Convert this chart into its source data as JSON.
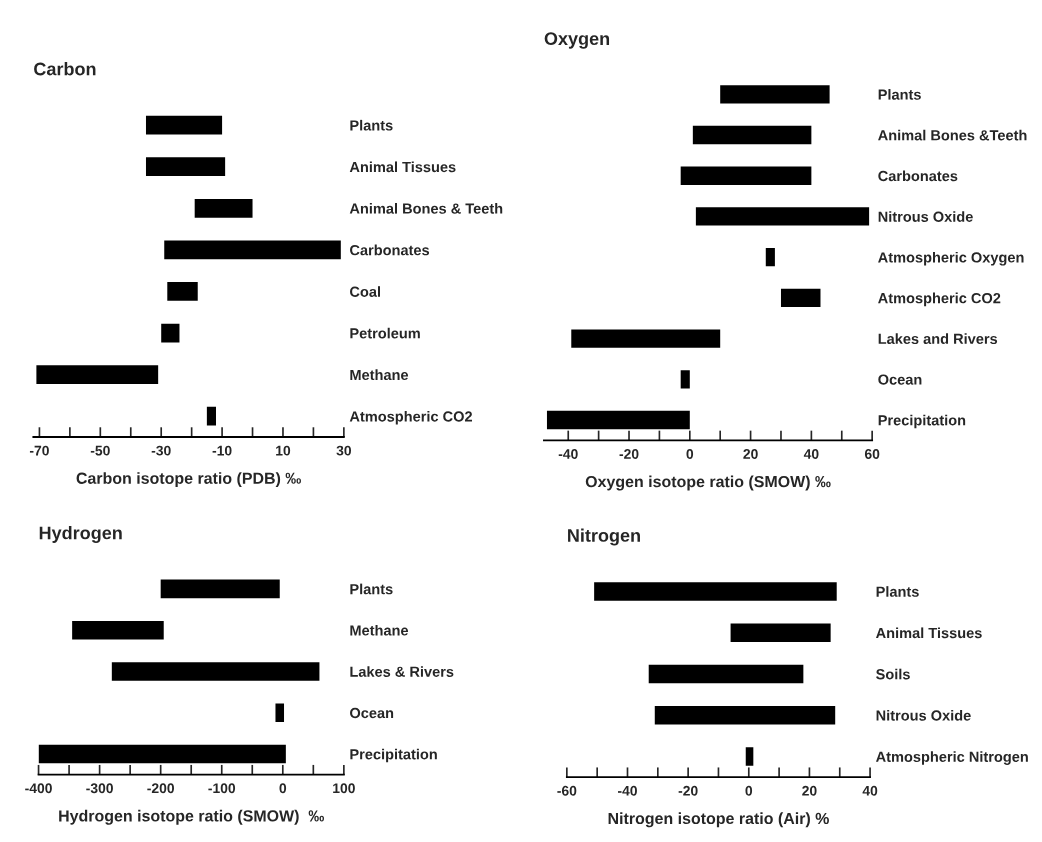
{
  "chart_data": [
    {
      "type": "bar",
      "orientation": "horizontal",
      "title": "Carbon",
      "xlabel": "Carbon isotope ratio (PDB) ‰",
      "categories": [
        "Plants",
        "Animal Tissues",
        "Animal Bones & Teeth",
        "Carbonates",
        "Coal",
        "Petroleum",
        "Methane",
        "Atmospheric CO2"
      ],
      "base": [
        -35,
        -35,
        -19,
        -29,
        -28,
        -30,
        -71,
        -15
      ],
      "values": [
        25,
        26,
        19,
        58,
        10,
        6,
        40,
        3
      ],
      "color": "#000000",
      "xlim": [
        -72,
        30
      ],
      "xticks": [
        -70,
        {
          "value": -60,
          "label": null
        },
        -50,
        {
          "value": -40,
          "label": null
        },
        -30,
        {
          "value": -20,
          "label": null
        },
        -10,
        {
          "value": 0,
          "label": null
        },
        10,
        {
          "value": 20,
          "label": null
        },
        30
      ]
    },
    {
      "type": "bar",
      "orientation": "horizontal",
      "title": "Oxygen",
      "xlabel": "Oxygen isotope ratio (SMOW) ‰",
      "categories": [
        "Plants",
        "Animal Bones &Teeth",
        "Carbonates",
        "Nitrous Oxide",
        "Atmospheric Oxygen",
        "Atmospheric CO2",
        "Lakes and Rivers",
        "Ocean",
        "Precipitation"
      ],
      "base": [
        10,
        1,
        -3,
        2,
        25,
        30,
        -39,
        -3,
        -47
      ],
      "values": [
        36,
        39,
        43,
        57,
        3,
        13,
        49,
        3,
        47
      ],
      "color": "#000000",
      "xlim": [
        -48,
        60
      ],
      "xticks": [
        -40,
        {
          "value": -30,
          "label": null
        },
        -20,
        {
          "value": -10,
          "label": null
        },
        0,
        {
          "value": 10,
          "label": null
        },
        20,
        {
          "value": 30,
          "label": null
        },
        40,
        {
          "value": 50,
          "label": null
        },
        60
      ]
    },
    {
      "type": "bar",
      "orientation": "horizontal",
      "title": "Hydrogen",
      "xlabel": "Hydrogen isotope ratio (SMOW)  ‰",
      "categories": [
        "Plants",
        "Methane",
        "Lakes & Rivers",
        "Ocean",
        "Precipitation"
      ],
      "base": [
        -200,
        -345,
        -280,
        -12,
        -400
      ],
      "values": [
        195,
        150,
        340,
        14,
        405
      ],
      "color": "#000000",
      "xlim": [
        -400,
        100
      ],
      "xticks": [
        -400,
        {
          "value": -350,
          "label": null
        },
        -300,
        {
          "value": -250,
          "label": null
        },
        -200,
        {
          "value": -150,
          "label": null
        },
        -100,
        {
          "value": -50,
          "label": null
        },
        0,
        {
          "value": 50,
          "label": null
        },
        100
      ]
    },
    {
      "type": "bar",
      "orientation": "horizontal",
      "title": "Nitrogen",
      "xlabel": "Nitrogen isotope ratio (Air) %",
      "categories": [
        "Plants",
        "Animal Tissues",
        "Soils",
        "Nitrous Oxide",
        "Atmospheric Nitrogen"
      ],
      "base": [
        -51,
        -6,
        -33,
        -31,
        -1
      ],
      "values": [
        80,
        33,
        51,
        59.5,
        2.5
      ],
      "color": "#000000",
      "xlim": [
        -60,
        40
      ],
      "xticks": [
        -60,
        {
          "value": -50,
          "label": null
        },
        -40,
        {
          "value": -30,
          "label": null
        },
        -20,
        {
          "value": -10,
          "label": null
        },
        0,
        {
          "value": 10,
          "label": null
        },
        20,
        {
          "value": 30,
          "label": null
        },
        40
      ]
    }
  ]
}
